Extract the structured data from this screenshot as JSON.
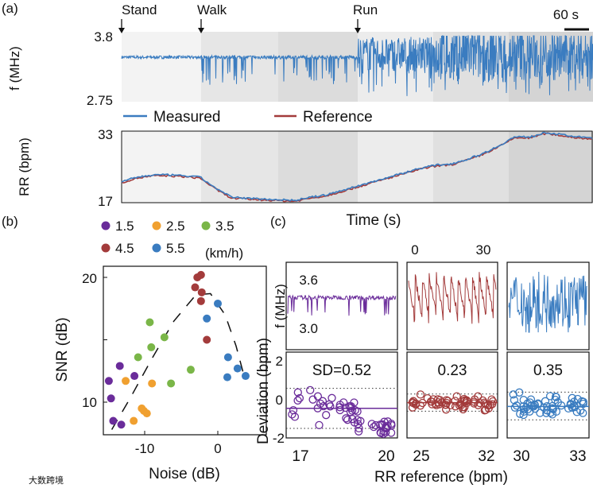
{
  "colors": {
    "measured": "#3a7cc0",
    "reference": "#a33b3b",
    "purple": "#6a2c9a",
    "orange": "#f0a030",
    "green": "#7ab648",
    "brown": "#a33b3b",
    "blue": "#3a7cc0"
  },
  "chart_data": [
    {
      "panel": "(a)",
      "type": "line",
      "title": "",
      "annotations": [
        "Stand",
        "Walk",
        "Run"
      ],
      "scale_bar": "60 s",
      "top": {
        "ylabel": "f (MHz)",
        "yticks": [
          "3.8",
          "2.75"
        ],
        "ylim": [
          2.75,
          3.8
        ],
        "phases": [
          {
            "name": "Stand",
            "baseline": 3.45,
            "spike_to": 3.4
          },
          {
            "name": "Walk",
            "baseline": 3.45,
            "spike_to": 3.0
          },
          {
            "name": "Run",
            "baseline": 3.5,
            "spike_to": 2.8
          }
        ]
      },
      "legend": [
        "Measured",
        "Reference"
      ],
      "bottom": {
        "ylabel": "RR (bpm)",
        "yticks": [
          "33",
          "17"
        ],
        "ylim": [
          17,
          33
        ],
        "reference": [
          21.5,
          22.5,
          23,
          23,
          22.8,
          22.5,
          20,
          18,
          17.8,
          17.6,
          17.5,
          17.3,
          18,
          18.5,
          19.5,
          20.5,
          21.5,
          22.5,
          23.5,
          24.5,
          25.2,
          25.5,
          26.5,
          27.8,
          29.5,
          31.5,
          31.5,
          32.5,
          32,
          31.5,
          31.3
        ]
      }
    },
    {
      "panel": "(b)",
      "type": "scatter",
      "xlabel": "Noise (dB)",
      "ylabel": "SNR (dB)",
      "xticks": [
        "-10",
        "0"
      ],
      "yticks": [
        "20",
        "10"
      ],
      "xlim": [
        -15.7,
        6.6
      ],
      "ylim": [
        7.6,
        20.9
      ],
      "legend_unit": "(km/h)",
      "series": [
        {
          "name": "1.5",
          "color": "#6a2c9a",
          "points": [
            [
              -14.9,
              11.7
            ],
            [
              -14.6,
              10.3
            ],
            [
              -13.4,
              12.9
            ],
            [
              -11.4,
              12.1
            ],
            [
              -14.3,
              8.5
            ],
            [
              -13.2,
              8.2
            ]
          ]
        },
        {
          "name": "2.5",
          "color": "#f0a030",
          "points": [
            [
              -12.6,
              11.7
            ],
            [
              -9.0,
              11.5
            ],
            [
              -10.4,
              9.5
            ],
            [
              -10.1,
              9.3
            ],
            [
              -9.7,
              9.1
            ],
            [
              -11.5,
              8.5
            ]
          ]
        },
        {
          "name": "3.5",
          "color": "#7ab648",
          "points": [
            [
              -9.3,
              16.4
            ],
            [
              -7.3,
              15.2
            ],
            [
              -9.1,
              14.4
            ],
            [
              -10.9,
              13.6
            ],
            [
              -6.4,
              11.5
            ],
            [
              -3.7,
              12.6
            ]
          ]
        },
        {
          "name": "4.5",
          "color": "#a33b3b",
          "points": [
            [
              -2.8,
              20.0
            ],
            [
              -2.3,
              20.2
            ],
            [
              -3.1,
              19.2
            ],
            [
              -2.2,
              18.8
            ],
            [
              -2.3,
              18.1
            ],
            [
              -1.5,
              15.0
            ]
          ]
        },
        {
          "name": "5.5",
          "color": "#3a7cc0",
          "points": [
            [
              0.0,
              17.9
            ],
            [
              -1.5,
              16.7
            ],
            [
              1.4,
              13.6
            ],
            [
              2.7,
              12.7
            ],
            [
              3.8,
              12.1
            ],
            [
              1.3,
              12.0
            ]
          ]
        }
      ],
      "fit_curve": [
        [
          -14.5,
          7.8
        ],
        [
          -12,
          10.3
        ],
        [
          -9,
          13.5
        ],
        [
          -6,
          16.5
        ],
        [
          -3,
          18.6
        ],
        [
          -1,
          18.7
        ],
        [
          1,
          17
        ],
        [
          2.5,
          14.5
        ],
        [
          3.5,
          12.3
        ]
      ]
    },
    {
      "panel": "(c)",
      "type": "scatter",
      "top_xlabel": "Time (s)",
      "top_xticks": [
        "0",
        "30"
      ],
      "top_ylabel": "f (MHz)",
      "top_yticks": [
        "3.6",
        "3.0"
      ],
      "ylabel": "Deviation (bpm)",
      "yticks": [
        "2",
        "0",
        "-2"
      ],
      "ylim": [
        -2,
        2
      ],
      "xlabel": "RR reference (bpm)",
      "columns": [
        {
          "color": "#6a2c9a",
          "sd_label": "SD=0.52",
          "xticks": [
            "17",
            "20"
          ],
          "xlim": [
            16.7,
            20.3
          ],
          "mean": -0.45,
          "limits": [
            0.6,
            -1.5
          ]
        },
        {
          "color": "#a33b3b",
          "sd_label": "0.23",
          "xticks": [
            "25",
            "32"
          ],
          "xlim": [
            24.6,
            32.6
          ],
          "mean": -0.15,
          "limits": [
            0.3,
            -0.6
          ]
        },
        {
          "color": "#3a7cc0",
          "sd_label": "0.35",
          "xticks": [
            "30",
            "33"
          ],
          "xlim": [
            29.6,
            33.4
          ],
          "mean": -0.35,
          "limits": [
            0.4,
            -1.05
          ]
        }
      ]
    }
  ],
  "panel_labels": [
    "(a)",
    "(b)",
    "(c)"
  ],
  "watermark": "大数跨境"
}
